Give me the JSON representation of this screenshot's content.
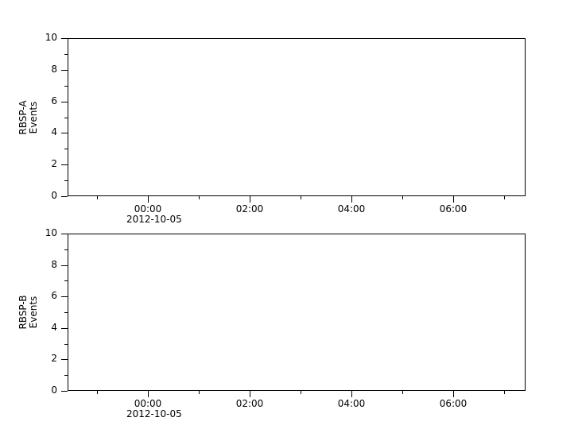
{
  "figure": {
    "background_color": "#ffffff",
    "foreground_color": "#000000",
    "title": ""
  },
  "chart_data": [
    {
      "type": "line",
      "panel_id": "rbsp-a",
      "title": "",
      "ylabel_lines": [
        "RBSP-A",
        "Events"
      ],
      "xlabel": "",
      "ylim": [
        0,
        10
      ],
      "ytick_major": [
        0,
        2,
        4,
        6,
        8,
        10
      ],
      "ytick_labels": [
        "0",
        "2",
        "4",
        "6",
        "8",
        "10"
      ],
      "ytick_minor": [
        1,
        3,
        5,
        7,
        9
      ],
      "xlim_hours": [
        -1.578125,
        7.421875
      ],
      "xtick_major": [
        {
          "hour": 0,
          "label": "00:00",
          "date_label": "2012-10-05"
        },
        {
          "hour": 2,
          "label": "02:00"
        },
        {
          "hour": 4,
          "label": "04:00"
        },
        {
          "hour": 6,
          "label": "06:00"
        }
      ],
      "xtick_minor_hours": [
        -1,
        1,
        3,
        5,
        7
      ],
      "grid": false,
      "legend": null,
      "series": [],
      "note": "panel is empty - no data points plotted"
    },
    {
      "type": "line",
      "panel_id": "rbsp-b",
      "title": "",
      "ylabel_lines": [
        "RBSP-B",
        "Events"
      ],
      "xlabel": "",
      "ylim": [
        0,
        10
      ],
      "ytick_major": [
        0,
        2,
        4,
        6,
        8,
        10
      ],
      "ytick_labels": [
        "0",
        "2",
        "4",
        "6",
        "8",
        "10"
      ],
      "ytick_minor": [
        1,
        3,
        5,
        7,
        9
      ],
      "xlim_hours": [
        -1.578125,
        7.421875
      ],
      "xtick_major": [
        {
          "hour": 0,
          "label": "00:00",
          "date_label": "2012-10-05"
        },
        {
          "hour": 2,
          "label": "02:00"
        },
        {
          "hour": 4,
          "label": "04:00"
        },
        {
          "hour": 6,
          "label": "06:00"
        }
      ],
      "xtick_minor_hours": [
        -1,
        1,
        3,
        5,
        7
      ],
      "grid": false,
      "legend": null,
      "series": [],
      "note": "panel is empty - no data points plotted"
    }
  ]
}
